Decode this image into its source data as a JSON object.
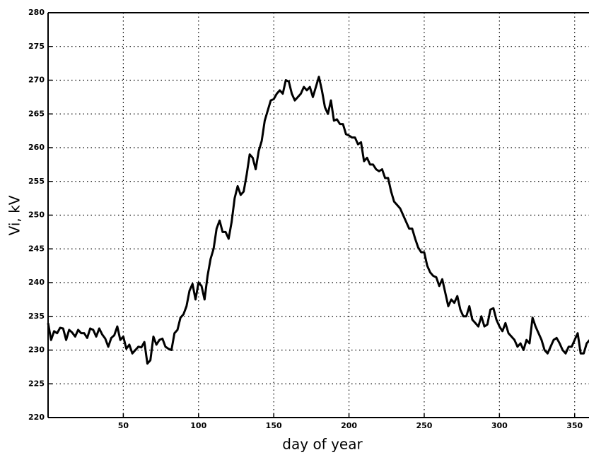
{
  "chart_data": {
    "type": "line",
    "xlabel": "day of year",
    "ylabel": "Vi, kV",
    "xlim": [
      0,
      360
    ],
    "ylim": [
      220,
      280
    ],
    "xticks": [
      50,
      100,
      150,
      200,
      250,
      300,
      350
    ],
    "yticks": [
      220,
      225,
      230,
      235,
      240,
      245,
      250,
      255,
      260,
      265,
      270,
      275,
      280
    ],
    "grid": true,
    "series": [
      {
        "color": "#000000",
        "x": [
          0,
          2,
          4,
          6,
          8,
          10,
          12,
          14,
          16,
          18,
          20,
          22,
          24,
          26,
          28,
          30,
          32,
          34,
          36,
          38,
          40,
          42,
          44,
          46,
          48,
          50,
          52,
          54,
          56,
          58,
          60,
          62,
          64,
          66,
          68,
          70,
          72,
          74,
          76,
          78,
          80,
          82,
          84,
          86,
          88,
          90,
          92,
          94,
          96,
          98,
          100,
          102,
          104,
          106,
          108,
          110,
          112,
          114,
          116,
          118,
          120,
          122,
          124,
          126,
          128,
          130,
          132,
          134,
          136,
          138,
          140,
          142,
          144,
          146,
          148,
          150,
          152,
          154,
          156,
          158,
          160,
          162,
          164,
          166,
          168,
          170,
          172,
          174,
          176,
          178,
          180,
          182,
          184,
          186,
          188,
          190,
          192,
          194,
          196,
          198,
          200,
          202,
          204,
          206,
          208,
          210,
          212,
          214,
          216,
          218,
          220,
          222,
          224,
          226,
          228,
          230,
          232,
          234,
          236,
          238,
          240,
          242,
          244,
          246,
          248,
          250,
          252,
          254,
          256,
          258,
          260,
          262,
          264,
          266,
          268,
          270,
          272,
          274,
          276,
          278,
          280,
          282,
          284,
          286,
          288,
          290,
          292,
          294,
          296,
          298,
          300,
          302,
          304,
          306,
          308,
          310,
          312,
          314,
          316,
          318,
          320,
          322,
          324,
          326,
          328,
          330,
          332,
          334,
          336,
          338,
          340,
          342,
          344,
          346,
          348,
          350,
          352,
          354,
          356,
          358,
          360
        ],
        "values": [
          234,
          231.5,
          232.8,
          232.5,
          233.3,
          233.2,
          231.5,
          233,
          232.6,
          232,
          233,
          232.5,
          232.5,
          231.8,
          233.2,
          233,
          232,
          233.2,
          232.3,
          231.7,
          230.5,
          231.8,
          232.2,
          233.5,
          231.5,
          232,
          230.2,
          230.8,
          229.5,
          230,
          230.5,
          230.4,
          231.2,
          228,
          228.5,
          232,
          230.8,
          231.5,
          231.7,
          230.5,
          230.2,
          230,
          232.5,
          233,
          234.8,
          235.3,
          236.5,
          238.8,
          239.8,
          237.5,
          240,
          239.5,
          237.5,
          241,
          243.5,
          245,
          248,
          249.2,
          247.5,
          247.5,
          246.5,
          249,
          252.5,
          254.3,
          253,
          253.5,
          256,
          259,
          258.5,
          256.8,
          259.5,
          261,
          264,
          265.5,
          267,
          267.2,
          268,
          268.5,
          268,
          270,
          269.8,
          268,
          267,
          267.5,
          268,
          269,
          268.5,
          269,
          267.5,
          269,
          270.5,
          268.5,
          266,
          265,
          267,
          264,
          264.2,
          263.5,
          263.5,
          262,
          261.8,
          261.5,
          261.5,
          260.5,
          260.8,
          258,
          258.5,
          257.5,
          257.5,
          256.8,
          256.5,
          256.8,
          255.5,
          255.5,
          253.5,
          252,
          251.5,
          251,
          250,
          249,
          248,
          248,
          246.5,
          245.2,
          244.5,
          244.5,
          242.5,
          241.5,
          241,
          240.8,
          239.5,
          240.5,
          238.5,
          236.5,
          237.5,
          237,
          238,
          236,
          235,
          235,
          236.5,
          234.5,
          234,
          233.5,
          235,
          233.5,
          233.8,
          236,
          236.2,
          234.5,
          233.5,
          232.8,
          234,
          232.5,
          232,
          231.5,
          230.5,
          231,
          230,
          231.5,
          231,
          234.8,
          233.5,
          232.5,
          231.5,
          230,
          229.5,
          230.5,
          231.5,
          231.8,
          231,
          230,
          229.5,
          230.5,
          230.5,
          231.5,
          232.5,
          229.5,
          229.5,
          231,
          231.5
        ]
      }
    ]
  }
}
